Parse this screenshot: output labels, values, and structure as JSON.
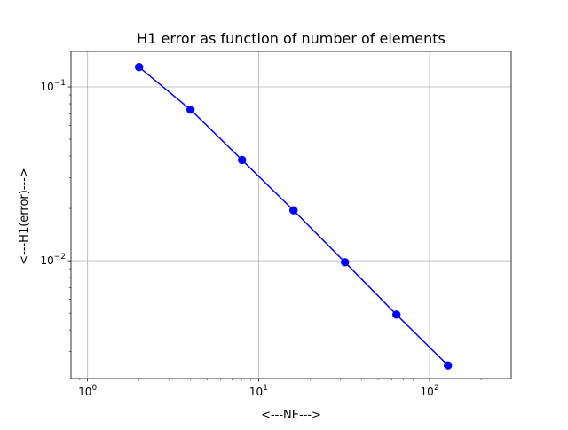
{
  "chart_data": {
    "type": "line",
    "title": "H1 error as function of number of elements",
    "xlabel": "<---NE--->",
    "ylabel": "<---H1(error)--->",
    "xscale": "log",
    "yscale": "log",
    "xlim": [
      0.8,
      300
    ],
    "ylim": [
      0.0021,
      0.16
    ],
    "grid": true,
    "x_tick_labels": [
      {
        "value": 1,
        "mantissa": "10",
        "exp": "0"
      },
      {
        "value": 10,
        "mantissa": "10",
        "exp": "1"
      },
      {
        "value": 100,
        "mantissa": "10",
        "exp": "2"
      }
    ],
    "y_tick_labels": [
      {
        "value": 0.01,
        "mantissa": "10",
        "exp": "−2"
      },
      {
        "value": 0.1,
        "mantissa": "10",
        "exp": "−1"
      }
    ],
    "series": [
      {
        "color": "#0000ff",
        "marker": "circle",
        "x": [
          2,
          4,
          8,
          16,
          32,
          64,
          128
        ],
        "y": [
          0.13,
          0.074,
          0.038,
          0.0195,
          0.0098,
          0.0049,
          0.0025
        ]
      }
    ]
  }
}
